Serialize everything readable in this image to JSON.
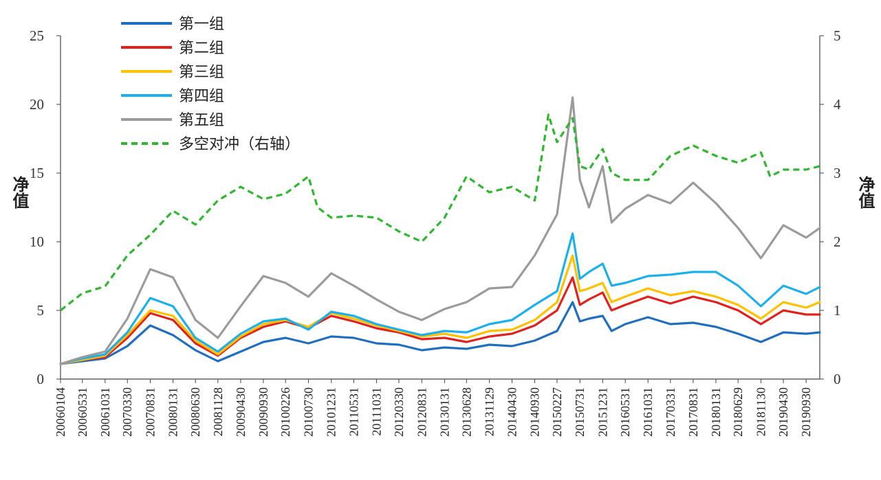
{
  "chart_data": {
    "type": "line",
    "ylabel_left": "净值",
    "ylabel_right": "净值",
    "ylim_left": [
      0,
      25
    ],
    "yticks_left": [
      "0",
      "5",
      "10",
      "15",
      "20",
      "25"
    ],
    "ylim_right": [
      0,
      5
    ],
    "yticks_right": [
      "0",
      "1",
      "2",
      "3",
      "4",
      "5"
    ],
    "legend_position": "top-left",
    "grid": false,
    "xlim": [
      "2006-01-04",
      "2019-12-31"
    ],
    "x_ticks": [
      {
        "label": "20060104",
        "date": "2006-01-04"
      },
      {
        "label": "20060531",
        "date": "2006-05-31"
      },
      {
        "label": "20061031",
        "date": "2006-10-31"
      },
      {
        "label": "20070330",
        "date": "2007-03-30"
      },
      {
        "label": "20070831",
        "date": "2007-08-31"
      },
      {
        "label": "20080131",
        "date": "2008-01-31"
      },
      {
        "label": "20080630",
        "date": "2008-06-30"
      },
      {
        "label": "20081128",
        "date": "2008-11-28"
      },
      {
        "label": "20090430",
        "date": "2009-04-30"
      },
      {
        "label": "20090930",
        "date": "2009-09-30"
      },
      {
        "label": "20100226",
        "date": "2010-02-26"
      },
      {
        "label": "20100730",
        "date": "2010-07-30"
      },
      {
        "label": "20101231",
        "date": "2010-12-31"
      },
      {
        "label": "20110531",
        "date": "2011-05-31"
      },
      {
        "label": "20111031",
        "date": "2011-10-31"
      },
      {
        "label": "20120330",
        "date": "2012-03-30"
      },
      {
        "label": "20120831",
        "date": "2012-08-31"
      },
      {
        "label": "20130131",
        "date": "2013-01-31"
      },
      {
        "label": "20130628",
        "date": "2013-06-28"
      },
      {
        "label": "20131129",
        "date": "2013-11-29"
      },
      {
        "label": "20140430",
        "date": "2014-04-30"
      },
      {
        "label": "20140930",
        "date": "2014-09-30"
      },
      {
        "label": "20150227",
        "date": "2015-02-27"
      },
      {
        "label": "20150731",
        "date": "2015-07-31"
      },
      {
        "label": "20151231",
        "date": "2015-12-31"
      },
      {
        "label": "20160531",
        "date": "2016-05-31"
      },
      {
        "label": "20161031",
        "date": "2016-10-31"
      },
      {
        "label": "20170331",
        "date": "2017-03-31"
      },
      {
        "label": "20170831",
        "date": "2017-08-31"
      },
      {
        "label": "20180131",
        "date": "2018-01-31"
      },
      {
        "label": "20180629",
        "date": "2018-06-29"
      },
      {
        "label": "20181130",
        "date": "2018-11-30"
      },
      {
        "label": "20190430",
        "date": "2019-04-30"
      },
      {
        "label": "20190930",
        "date": "2019-09-30"
      }
    ],
    "series": [
      {
        "name": "第一组",
        "color": "#1f6fc1",
        "axis": "left",
        "dash": false,
        "x": [
          "2006-01-04",
          "2006-05-31",
          "2006-10-31",
          "2007-03-30",
          "2007-08-31",
          "2008-01-31",
          "2008-06-30",
          "2008-11-28",
          "2009-04-30",
          "2009-09-30",
          "2010-02-26",
          "2010-07-30",
          "2010-12-31",
          "2011-05-31",
          "2011-10-31",
          "2012-03-30",
          "2012-08-31",
          "2013-01-31",
          "2013-06-28",
          "2013-11-29",
          "2014-04-30",
          "2014-09-30",
          "2015-02-27",
          "2015-06-12",
          "2015-07-31",
          "2015-09-30",
          "2015-12-31",
          "2016-02-29",
          "2016-05-31",
          "2016-10-31",
          "2017-03-31",
          "2017-08-31",
          "2018-01-31",
          "2018-06-29",
          "2018-11-30",
          "2019-04-30",
          "2019-09-30",
          "2019-12-31"
        ],
        "values": [
          1.1,
          1.3,
          1.5,
          2.4,
          3.9,
          3.2,
          2.1,
          1.3,
          2.0,
          2.7,
          3.0,
          2.6,
          3.1,
          3.0,
          2.6,
          2.5,
          2.1,
          2.3,
          2.2,
          2.5,
          2.4,
          2.8,
          3.5,
          5.6,
          4.2,
          4.4,
          4.6,
          3.5,
          4.0,
          4.5,
          4.0,
          4.1,
          3.8,
          3.3,
          2.7,
          3.4,
          3.3,
          3.4
        ]
      },
      {
        "name": "第二组",
        "color": "#e3201b",
        "axis": "left",
        "dash": false,
        "x": [
          "2006-01-04",
          "2006-05-31",
          "2006-10-31",
          "2007-03-30",
          "2007-08-31",
          "2008-01-31",
          "2008-06-30",
          "2008-11-28",
          "2009-04-30",
          "2009-09-30",
          "2010-02-26",
          "2010-07-30",
          "2010-12-31",
          "2011-05-31",
          "2011-10-31",
          "2012-03-30",
          "2012-08-31",
          "2013-01-31",
          "2013-06-28",
          "2013-11-29",
          "2014-04-30",
          "2014-09-30",
          "2015-02-27",
          "2015-06-12",
          "2015-07-31",
          "2015-09-30",
          "2015-12-31",
          "2016-02-29",
          "2016-05-31",
          "2016-10-31",
          "2017-03-31",
          "2017-08-31",
          "2018-01-31",
          "2018-06-29",
          "2018-11-30",
          "2019-04-30",
          "2019-09-30",
          "2019-12-31"
        ],
        "values": [
          1.1,
          1.4,
          1.6,
          3.0,
          4.8,
          4.3,
          2.6,
          1.7,
          3.0,
          3.8,
          4.2,
          3.7,
          4.6,
          4.2,
          3.7,
          3.4,
          2.9,
          3.0,
          2.7,
          3.1,
          3.3,
          3.9,
          5.0,
          7.4,
          5.4,
          5.8,
          6.3,
          5.0,
          5.4,
          6.0,
          5.5,
          6.0,
          5.6,
          5.0,
          4.0,
          5.0,
          4.7,
          4.7
        ]
      },
      {
        "name": "第三组",
        "color": "#ffc000",
        "axis": "left",
        "dash": false,
        "x": [
          "2006-01-04",
          "2006-05-31",
          "2006-10-31",
          "2007-03-30",
          "2007-08-31",
          "2008-01-31",
          "2008-06-30",
          "2008-11-28",
          "2009-04-30",
          "2009-09-30",
          "2010-02-26",
          "2010-07-30",
          "2010-12-31",
          "2011-05-31",
          "2011-10-31",
          "2012-03-30",
          "2012-08-31",
          "2013-01-31",
          "2013-06-28",
          "2013-11-29",
          "2014-04-30",
          "2014-09-30",
          "2015-02-27",
          "2015-06-12",
          "2015-07-31",
          "2015-09-30",
          "2015-12-31",
          "2016-02-29",
          "2016-05-31",
          "2016-10-31",
          "2017-03-31",
          "2017-08-31",
          "2018-01-31",
          "2018-06-29",
          "2018-11-30",
          "2019-04-30",
          "2019-09-30",
          "2019-12-31"
        ],
        "values": [
          1.1,
          1.4,
          1.7,
          3.2,
          5.0,
          4.6,
          2.8,
          1.8,
          3.1,
          4.0,
          4.3,
          3.8,
          4.8,
          4.4,
          3.9,
          3.5,
          3.1,
          3.3,
          3.0,
          3.5,
          3.6,
          4.3,
          5.6,
          9.0,
          6.4,
          6.6,
          7.0,
          5.6,
          6.0,
          6.6,
          6.1,
          6.4,
          6.0,
          5.4,
          4.4,
          5.6,
          5.2,
          5.6
        ]
      },
      {
        "name": "第四组",
        "color": "#1ab0f0",
        "axis": "left",
        "dash": false,
        "x": [
          "2006-01-04",
          "2006-05-31",
          "2006-10-31",
          "2007-03-30",
          "2007-08-31",
          "2008-01-31",
          "2008-06-30",
          "2008-11-28",
          "2009-04-30",
          "2009-09-30",
          "2010-02-26",
          "2010-07-30",
          "2010-12-31",
          "2011-05-31",
          "2011-10-31",
          "2012-03-30",
          "2012-08-31",
          "2013-01-31",
          "2013-06-28",
          "2013-11-29",
          "2014-04-30",
          "2014-09-30",
          "2015-02-27",
          "2015-06-12",
          "2015-07-31",
          "2015-09-30",
          "2015-12-31",
          "2016-02-29",
          "2016-05-31",
          "2016-10-31",
          "2017-03-31",
          "2017-08-31",
          "2018-01-31",
          "2018-06-29",
          "2018-11-30",
          "2019-04-30",
          "2019-09-30",
          "2019-12-31"
        ],
        "values": [
          1.1,
          1.5,
          1.8,
          3.4,
          5.9,
          5.3,
          3.0,
          2.0,
          3.3,
          4.2,
          4.4,
          3.6,
          4.9,
          4.6,
          4.0,
          3.6,
          3.2,
          3.5,
          3.4,
          4.0,
          4.3,
          5.4,
          6.4,
          10.6,
          7.3,
          7.8,
          8.4,
          6.8,
          7.0,
          7.5,
          7.6,
          7.8,
          7.8,
          6.8,
          5.3,
          6.8,
          6.2,
          6.7
        ]
      },
      {
        "name": "第五组",
        "color": "#9b9b9b",
        "axis": "left",
        "dash": false,
        "x": [
          "2006-01-04",
          "2006-05-31",
          "2006-10-31",
          "2007-03-30",
          "2007-08-31",
          "2008-01-31",
          "2008-06-30",
          "2008-11-28",
          "2009-04-30",
          "2009-09-30",
          "2010-02-26",
          "2010-07-30",
          "2010-12-31",
          "2011-05-31",
          "2011-10-31",
          "2012-03-30",
          "2012-08-31",
          "2013-01-31",
          "2013-06-28",
          "2013-11-29",
          "2014-04-30",
          "2014-09-30",
          "2015-02-27",
          "2015-06-12",
          "2015-07-31",
          "2015-09-30",
          "2015-12-31",
          "2016-02-29",
          "2016-05-31",
          "2016-10-31",
          "2017-03-31",
          "2017-08-31",
          "2018-01-31",
          "2018-06-29",
          "2018-11-30",
          "2019-04-30",
          "2019-09-30",
          "2019-12-31"
        ],
        "values": [
          1.1,
          1.6,
          2.0,
          4.4,
          8.0,
          7.4,
          4.3,
          3.0,
          5.3,
          7.5,
          7.0,
          6.0,
          7.7,
          6.8,
          5.8,
          4.9,
          4.3,
          5.1,
          5.6,
          6.6,
          6.7,
          9.0,
          12.0,
          20.5,
          14.5,
          12.5,
          15.5,
          11.4,
          12.4,
          13.4,
          12.8,
          14.3,
          12.8,
          11.0,
          8.8,
          11.2,
          10.3,
          11.0
        ]
      },
      {
        "name": "多空对冲（右轴）",
        "color": "#2eb82e",
        "axis": "right",
        "dash": true,
        "x": [
          "2006-01-04",
          "2006-05-31",
          "2006-10-31",
          "2007-03-30",
          "2007-08-31",
          "2008-01-31",
          "2008-06-30",
          "2008-11-28",
          "2009-04-30",
          "2009-09-30",
          "2010-02-26",
          "2010-07-30",
          "2010-09-30",
          "2010-12-31",
          "2011-05-31",
          "2011-10-31",
          "2012-03-30",
          "2012-08-31",
          "2013-01-31",
          "2013-06-28",
          "2013-11-29",
          "2014-04-30",
          "2014-09-30",
          "2014-12-31",
          "2015-02-27",
          "2015-06-12",
          "2015-07-31",
          "2015-09-30",
          "2015-12-31",
          "2016-02-29",
          "2016-05-31",
          "2016-10-31",
          "2017-03-31",
          "2017-08-31",
          "2018-01-31",
          "2018-06-29",
          "2018-11-30",
          "2019-01-31",
          "2019-04-30",
          "2019-09-30",
          "2019-12-31"
        ],
        "values": [
          1.0,
          1.25,
          1.35,
          1.8,
          2.1,
          2.45,
          2.25,
          2.6,
          2.8,
          2.62,
          2.7,
          2.95,
          2.5,
          2.35,
          2.38,
          2.35,
          2.15,
          2.0,
          2.35,
          2.95,
          2.72,
          2.8,
          2.6,
          3.85,
          3.45,
          3.8,
          3.1,
          3.05,
          3.35,
          3.0,
          2.9,
          2.9,
          3.25,
          3.4,
          3.25,
          3.15,
          3.3,
          2.95,
          3.05,
          3.05,
          3.1
        ]
      }
    ]
  }
}
